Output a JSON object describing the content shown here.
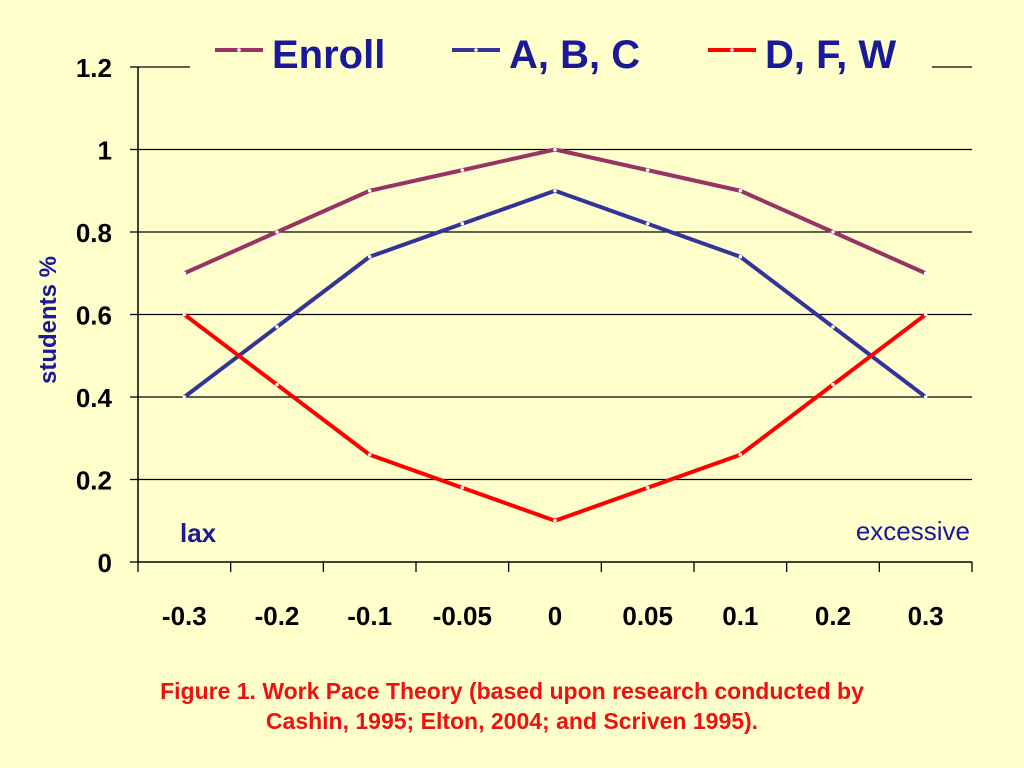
{
  "chart_data": {
    "type": "line",
    "categories": [
      "-0.3",
      "-0.2",
      "-0.1",
      "-0.05",
      "0",
      "0.05",
      "0.1",
      "0.2",
      "0.3"
    ],
    "series": [
      {
        "name": "Enroll",
        "color": "#993366",
        "values": [
          0.7,
          0.8,
          0.9,
          0.95,
          1.0,
          0.95,
          0.9,
          0.8,
          0.7
        ]
      },
      {
        "name": "A, B, C",
        "color": "#333399",
        "values": [
          0.4,
          0.57,
          0.74,
          0.82,
          0.9,
          0.82,
          0.74,
          0.57,
          0.4
        ]
      },
      {
        "name": "D, F, W",
        "color": "#ff0000",
        "values": [
          0.6,
          0.43,
          0.26,
          0.18,
          0.1,
          0.18,
          0.26,
          0.43,
          0.6
        ]
      }
    ],
    "y_ticks": [
      "0",
      "0.2",
      "0.4",
      "0.6",
      "0.8",
      "1",
      "1.2"
    ],
    "ylim": [
      0,
      1.2
    ],
    "ylabel": "students %",
    "grid": true,
    "legend_position": "top",
    "annotations": {
      "left": "lax",
      "right": "excessive"
    }
  },
  "caption": {
    "line1": "Figure 1. Work Pace Theory (based upon research conducted by",
    "line2": "Cashin, 1995; Elton, 2004; and Scriven 1995)."
  }
}
